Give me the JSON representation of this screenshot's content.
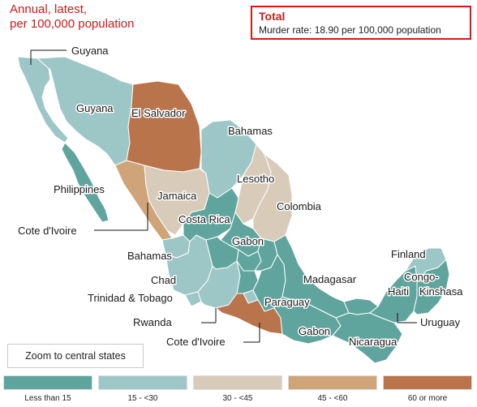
{
  "header": {
    "line1": "Annual, latest,",
    "line2": "per 100,000 population"
  },
  "total": {
    "title": "Total",
    "rate": "Murder rate: 18.90 per 100,000 population"
  },
  "zoom_button": "Zoom to central states",
  "colors": {
    "bin1": "#5fa59e",
    "bin2": "#9dc6c7",
    "bin3": "#d9cbba",
    "bin4": "#cfa478",
    "bin5": "#b9744c",
    "border": "#ffffff"
  },
  "legend": [
    {
      "label": "Less than 15",
      "color": "#5fa59e"
    },
    {
      "label": "15 - <30",
      "color": "#9dc6c7"
    },
    {
      "label": "30 - <45",
      "color": "#d9cbba"
    },
    {
      "label": "45 - <60",
      "color": "#cfa478"
    },
    {
      "label": "60 or more",
      "color": "#b9744c"
    }
  ],
  "labels": {
    "guyana_bc": "Guyana",
    "guyana_sonora": "Guyana",
    "el_salvador": "El Salvador",
    "bahamas_coahuila": "Bahamas",
    "lesotho": "Lesotho",
    "philippines": "Philippines",
    "jamaica": "Jamaica",
    "colombia": "Colombia",
    "cote_sinaloa": "Cote d'Ivoire",
    "costa_rica": "Costa Rica",
    "gabon_central": "Gabon",
    "bahamas_jalisco": "Bahamas",
    "chad": "Chad",
    "finland": "Finland",
    "madagasar": "Madagasar",
    "congo": "Congo-",
    "kinshasa": "Kinshasa",
    "trinidad": "Trinidad & Tobago",
    "haiti": "Haiti",
    "paraguay": "Paraguay",
    "rwanda": "Rwanda",
    "uruguay": "Uruguay",
    "gabon_oaxaca": "Gabon",
    "cote_guerrero": "Cote d'Ivoire",
    "nicaragua": "Nicaragua"
  }
}
